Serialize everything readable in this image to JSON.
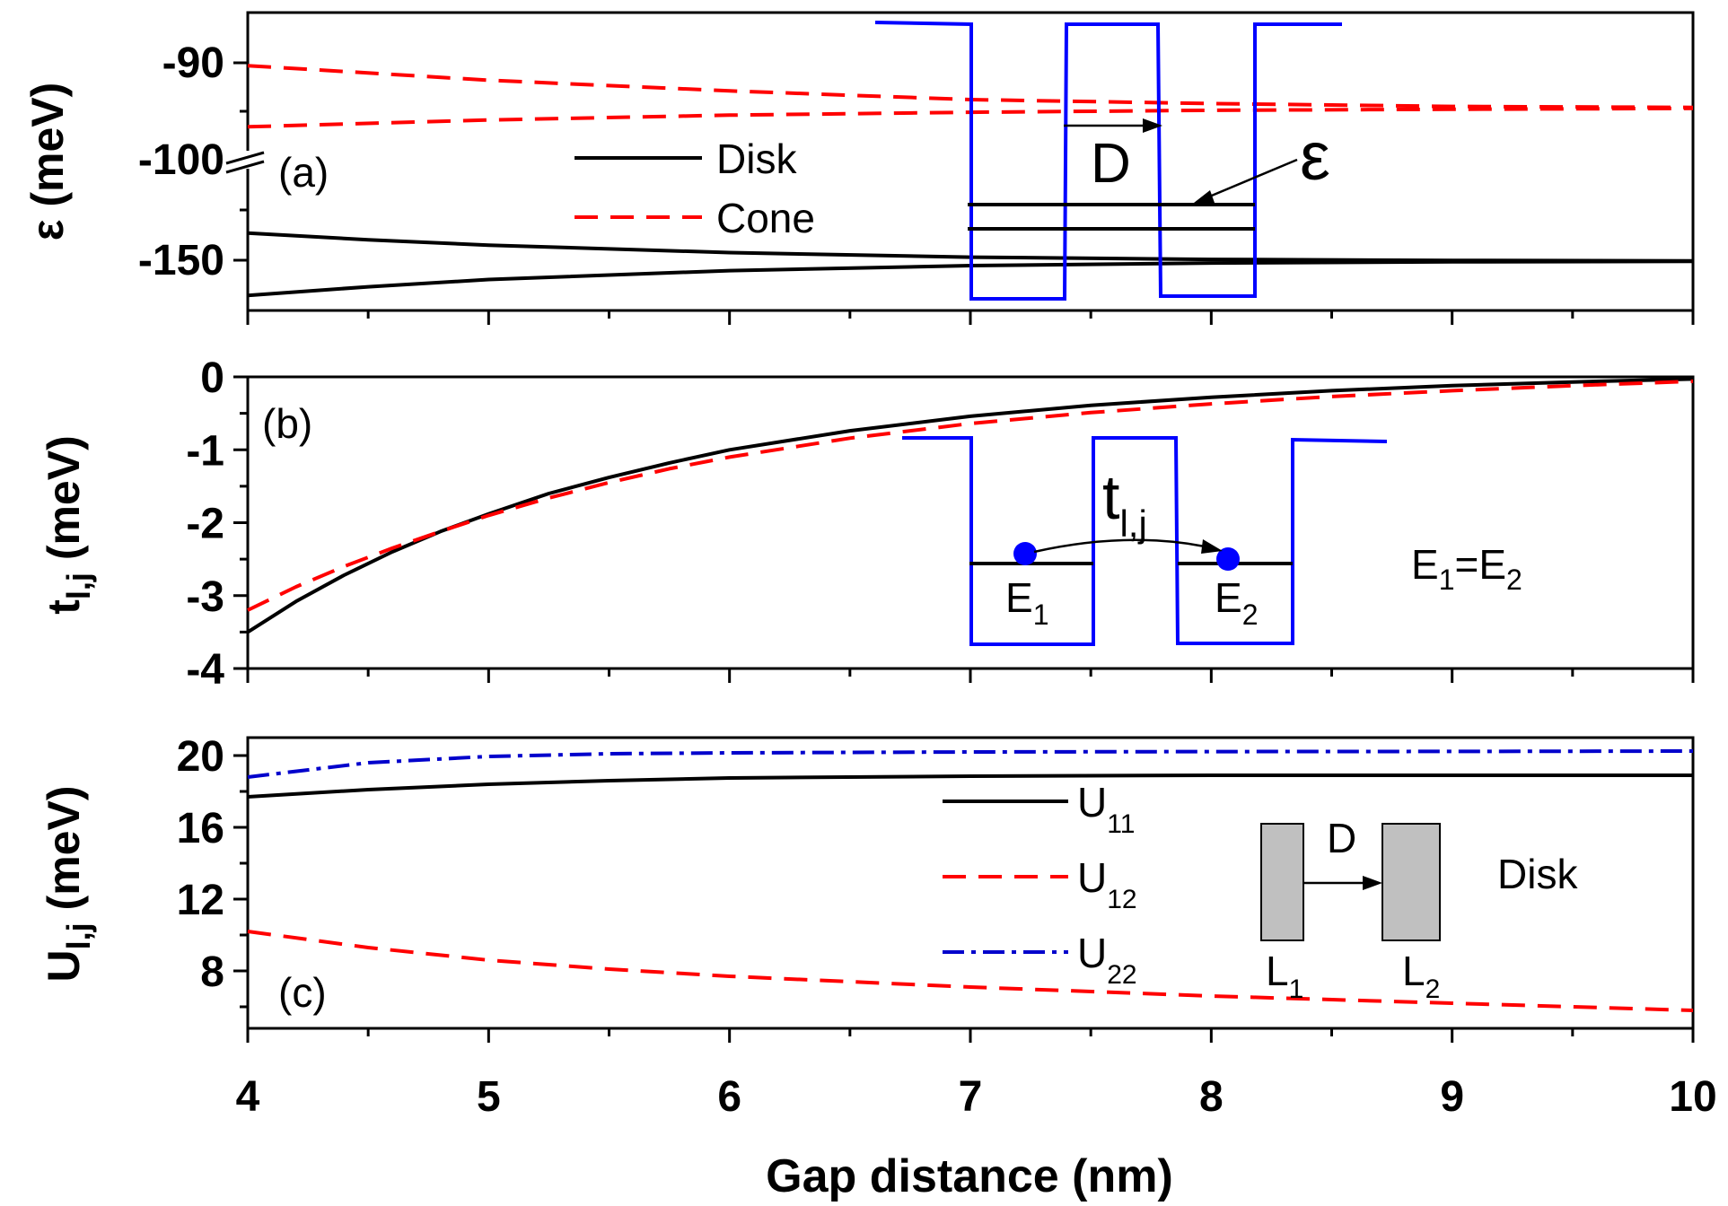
{
  "colors": {
    "disk": "#000000",
    "cone": "#ff0000",
    "u11": "#000000",
    "u12": "#ff0000",
    "u22": "#0000cc",
    "inset": "#0000ff",
    "particle": "#0000ff",
    "rect_fill": "#c0c0c0"
  },
  "x_axis": {
    "title": "Gap distance (nm)",
    "ticks": [
      4,
      5,
      6,
      7,
      8,
      9,
      10
    ],
    "tick_labels": [
      "4",
      "5",
      "6",
      "7",
      "8",
      "9",
      "10"
    ],
    "range": [
      4,
      10
    ]
  },
  "chart_data": [
    {
      "id": "a",
      "type": "line",
      "panel_label": "(a)",
      "ylabel": "ε (meV)",
      "broken_axis": true,
      "yticks": [
        -90,
        -100,
        -150
      ],
      "ytick_labels": [
        "-90",
        "-100",
        "-150"
      ],
      "grid": false,
      "legend": {
        "placement": "center-left",
        "entries": [
          {
            "text": "Disk",
            "series": "disk"
          },
          {
            "text": "Cone",
            "series": "cone"
          }
        ]
      },
      "series": [
        {
          "key": "disk",
          "style": "solid",
          "x": [
            4,
            4.5,
            5,
            6,
            7,
            8,
            9,
            10
          ],
          "y": [
            -136.5,
            -139.8,
            -142.5,
            -146.2,
            -148.5,
            -149.6,
            -150.1,
            -150.3
          ]
        },
        {
          "key": "disk",
          "style": "solid",
          "x": [
            4,
            4.5,
            5,
            6,
            7,
            8,
            9,
            10
          ],
          "y": [
            -167.5,
            -163.2,
            -159.6,
            -155.2,
            -152.7,
            -151.4,
            -150.8,
            -150.6
          ]
        },
        {
          "key": "cone",
          "style": "dashed",
          "x": [
            4,
            5,
            6,
            7,
            8,
            9,
            10
          ],
          "y": [
            -90.3,
            -91.8,
            -92.9,
            -93.8,
            -94.2,
            -94.5,
            -94.6
          ]
        },
        {
          "key": "cone",
          "style": "dashed",
          "x": [
            4,
            5,
            6,
            7,
            8,
            9,
            10
          ],
          "y": [
            -96.6,
            -95.9,
            -95.4,
            -95.1,
            -94.9,
            -94.8,
            -94.7
          ]
        }
      ],
      "inset": {
        "distance_label": "D",
        "level_label": "ε"
      }
    },
    {
      "id": "b",
      "type": "line",
      "panel_label": "(b)",
      "ylabel_main": "t",
      "ylabel_sub": "l,j",
      "ylabel_rest": " (meV)",
      "ylim": [
        -4,
        0
      ],
      "yticks": [
        0,
        -1,
        -2,
        -3,
        -4
      ],
      "ytick_labels": [
        "0",
        "-1",
        "-2",
        "-3",
        "-4"
      ],
      "grid": false,
      "series": [
        {
          "key": "disk",
          "style": "solid",
          "x": [
            4,
            4.2,
            4.4,
            4.6,
            4.8,
            5,
            5.25,
            5.5,
            5.75,
            6,
            6.5,
            7,
            7.5,
            8,
            8.5,
            9,
            9.5,
            10
          ],
          "y": [
            -3.5,
            -3.08,
            -2.72,
            -2.4,
            -2.12,
            -1.88,
            -1.6,
            -1.38,
            -1.18,
            -1.0,
            -0.74,
            -0.54,
            -0.39,
            -0.28,
            -0.19,
            -0.12,
            -0.07,
            -0.03
          ]
        },
        {
          "key": "cone",
          "style": "dashed",
          "x": [
            4,
            4.2,
            4.4,
            4.6,
            4.8,
            5,
            5.25,
            5.5,
            5.75,
            6,
            6.5,
            7,
            7.5,
            8,
            8.5,
            9,
            9.5,
            10
          ],
          "y": [
            -3.2,
            -2.88,
            -2.6,
            -2.35,
            -2.12,
            -1.9,
            -1.66,
            -1.45,
            -1.26,
            -1.1,
            -0.84,
            -0.64,
            -0.49,
            -0.37,
            -0.27,
            -0.19,
            -0.12,
            -0.06
          ]
        }
      ],
      "annotation": {
        "main": "E",
        "s1": "1",
        "eq": "=E",
        "s2": "2"
      },
      "inset": {
        "hop_main": "t",
        "hop_sub": "l,j",
        "left_main": "E",
        "left_sub": "1",
        "right_main": "E",
        "right_sub": "2"
      }
    },
    {
      "id": "c",
      "type": "line",
      "panel_label": "(c)",
      "ylabel_main": "U",
      "ylabel_sub": "l,j",
      "ylabel_rest": " (meV)",
      "ylim": [
        4.8,
        21
      ],
      "yticks": [
        20,
        16,
        12,
        8
      ],
      "ytick_labels": [
        "20",
        "16",
        "12",
        "8"
      ],
      "grid": false,
      "legend": {
        "placement": "center",
        "entries": [
          {
            "main": "U",
            "sub": "11",
            "series": "u11"
          },
          {
            "main": "U",
            "sub": "12",
            "series": "u12"
          },
          {
            "main": "U",
            "sub": "22",
            "series": "u22"
          }
        ]
      },
      "series": [
        {
          "key": "u11",
          "style": "solid",
          "x": [
            4,
            4.5,
            5,
            5.5,
            6,
            7,
            8,
            9,
            10
          ],
          "y": [
            17.7,
            18.1,
            18.4,
            18.6,
            18.75,
            18.85,
            18.9,
            18.9,
            18.9
          ]
        },
        {
          "key": "u12",
          "style": "dashed",
          "x": [
            4,
            4.5,
            5,
            5.5,
            6,
            7,
            8,
            9,
            10
          ],
          "y": [
            10.2,
            9.3,
            8.6,
            8.1,
            7.7,
            7.1,
            6.6,
            6.2,
            5.8
          ]
        },
        {
          "key": "u22",
          "style": "dashdot",
          "x": [
            4,
            4.5,
            5,
            5.5,
            6,
            7,
            8,
            9,
            10
          ],
          "y": [
            18.8,
            19.6,
            19.95,
            20.1,
            20.15,
            20.2,
            20.22,
            20.23,
            20.25
          ]
        }
      ],
      "inset": {
        "left_main": "L",
        "left_sub": "1",
        "right_main": "L",
        "right_sub": "2",
        "distance_label": "D",
        "caption": "Disk"
      }
    }
  ]
}
